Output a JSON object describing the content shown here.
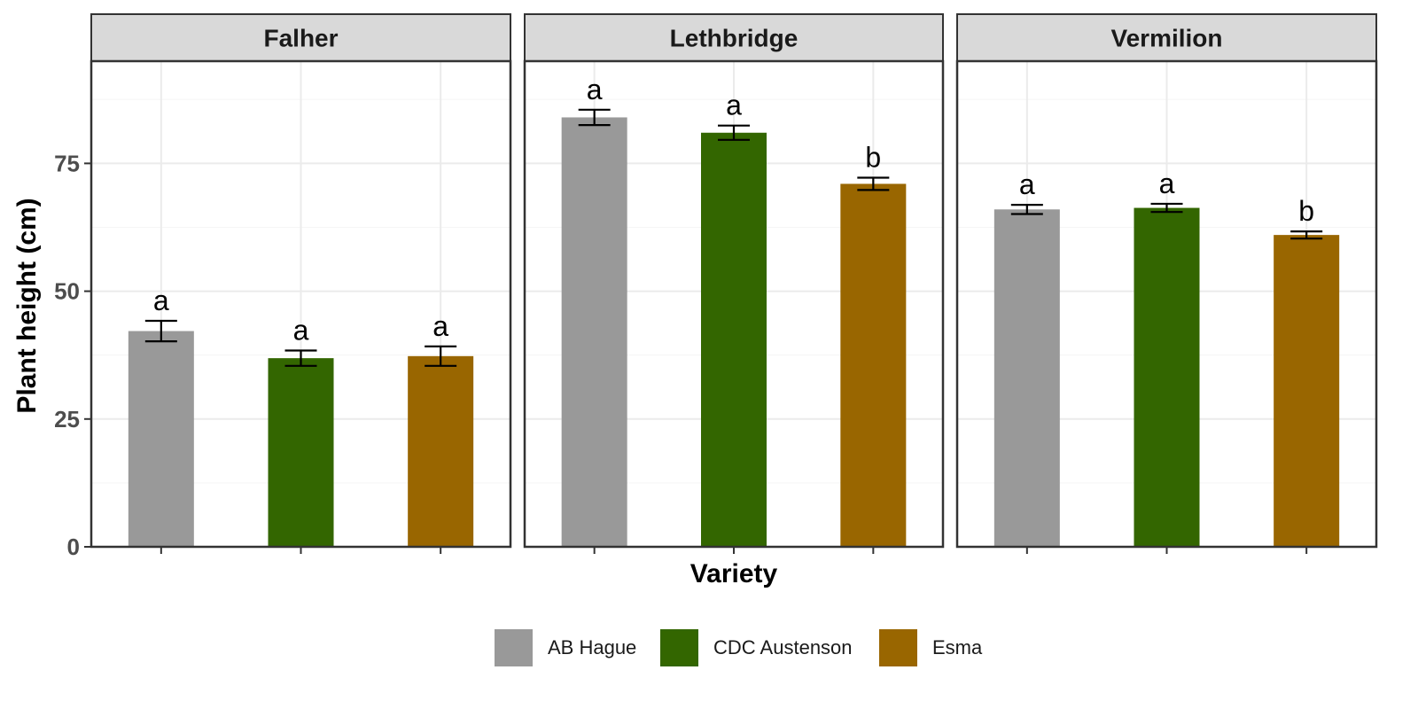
{
  "chart_data": {
    "type": "bar",
    "facets": [
      "Falher",
      "Lethbridge",
      "Vermilion"
    ],
    "categories": [
      "AB Hague",
      "CDC Austenson",
      "Esma"
    ],
    "xlabel": "Variety",
    "ylabel": "Plant height (cm)",
    "ylim": [
      0,
      95
    ],
    "yticks": [
      0,
      25,
      50,
      75
    ],
    "grid": true,
    "legend_position": "bottom",
    "colors": {
      "AB Hague": "#999999",
      "CDC Austenson": "#336600",
      "Esma": "#996600"
    },
    "panels": [
      {
        "facet": "Falher",
        "values": [
          42.2,
          36.9,
          37.3
        ],
        "errors": [
          2.0,
          1.5,
          1.9
        ],
        "letters": [
          "a",
          "a",
          "a"
        ]
      },
      {
        "facet": "Lethbridge",
        "values": [
          84.0,
          81.0,
          71.0
        ],
        "errors": [
          1.5,
          1.4,
          1.2
        ],
        "letters": [
          "a",
          "a",
          "b"
        ]
      },
      {
        "facet": "Vermilion",
        "values": [
          66.0,
          66.3,
          61.0
        ],
        "errors": [
          0.9,
          0.8,
          0.7
        ],
        "letters": [
          "a",
          "a",
          "b"
        ]
      }
    ]
  }
}
